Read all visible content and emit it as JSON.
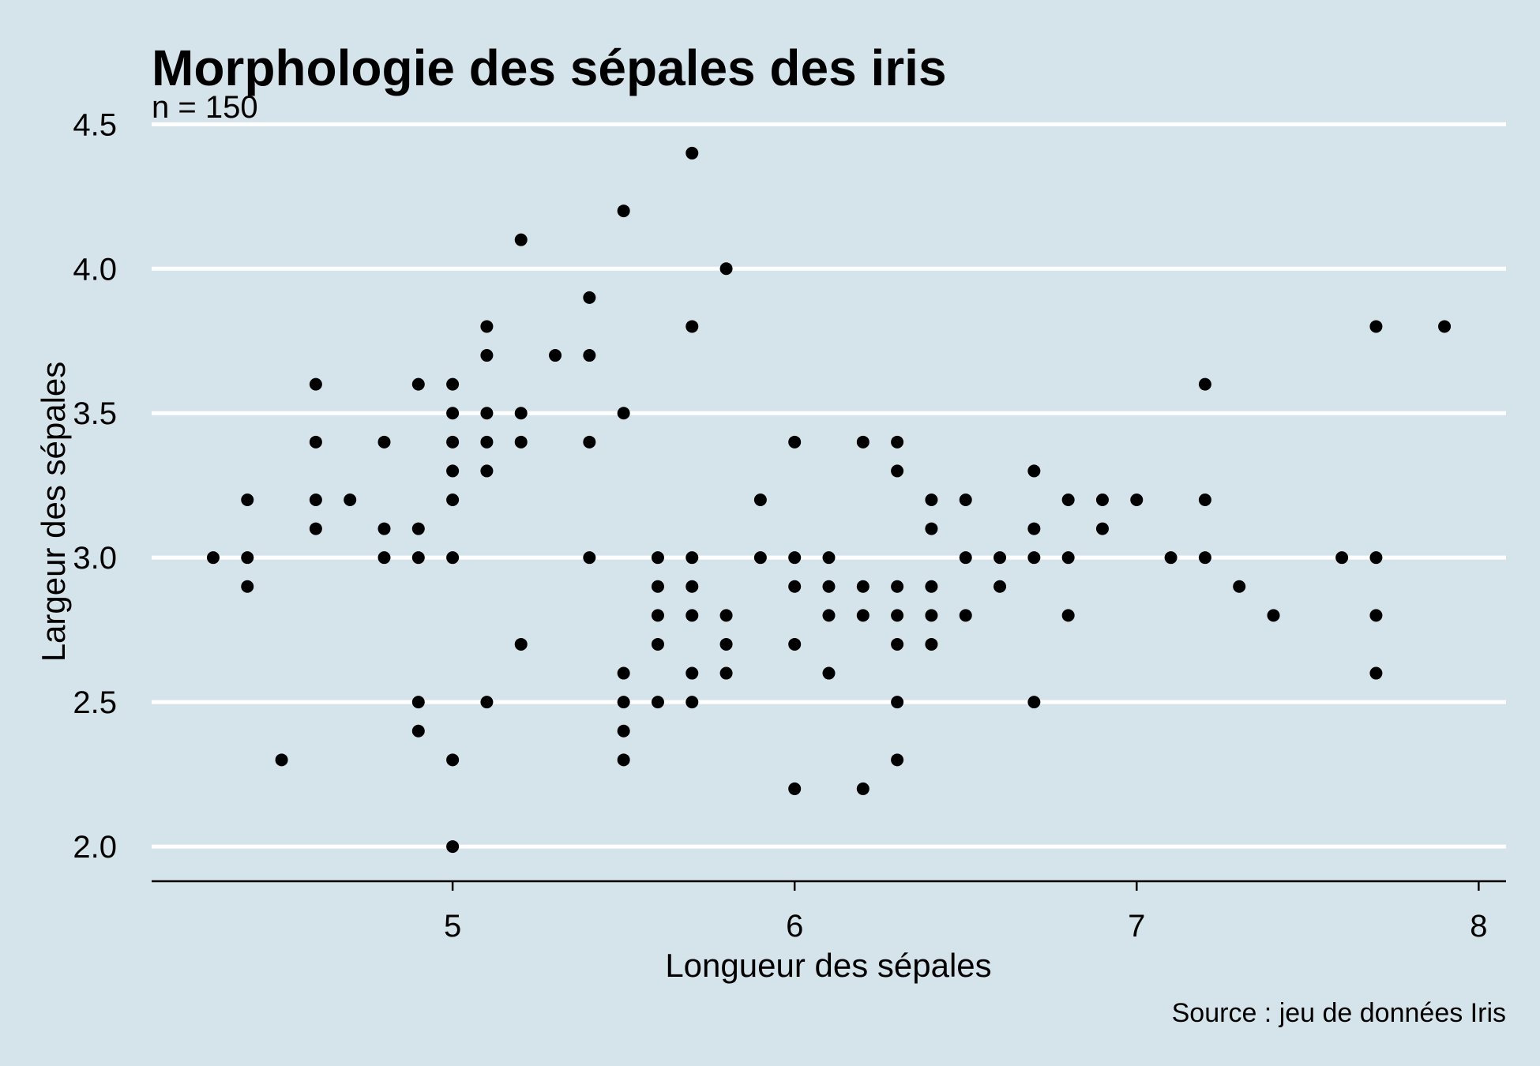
{
  "chart_data": {
    "type": "scatter",
    "title": "Morphologie des sépales des iris",
    "subtitle": "n = 150",
    "xlabel": "Longueur des sépales",
    "ylabel": "Largeur des sépales",
    "caption": "Source : jeu de données Iris",
    "xlim": [
      4.12,
      8.08
    ],
    "ylim": [
      1.88,
      4.52
    ],
    "x_ticks": [
      5,
      6,
      7,
      8
    ],
    "x_tick_labels": [
      "5",
      "6",
      "7",
      "8"
    ],
    "y_ticks": [
      2.0,
      2.5,
      3.0,
      3.5,
      4.0,
      4.5
    ],
    "y_tick_labels": [
      "2.0",
      "2.5",
      "3.0",
      "3.5",
      "4.0",
      "4.5"
    ],
    "grid": "horizontal major gridlines (white)",
    "legend": "none",
    "point_color": "#000000",
    "background_color": "#d5e4eb",
    "grid_color": "#ffffff",
    "points": [
      [
        4.3,
        3.0
      ],
      [
        4.4,
        3.2
      ],
      [
        4.4,
        3.0
      ],
      [
        4.4,
        2.9
      ],
      [
        4.5,
        2.3
      ],
      [
        4.6,
        3.6
      ],
      [
        4.6,
        3.4
      ],
      [
        4.6,
        3.2
      ],
      [
        4.6,
        3.1
      ],
      [
        4.7,
        3.2
      ],
      [
        4.8,
        3.4
      ],
      [
        4.8,
        3.1
      ],
      [
        4.8,
        3.0
      ],
      [
        4.9,
        3.6
      ],
      [
        4.9,
        3.1
      ],
      [
        4.9,
        3.0
      ],
      [
        4.9,
        2.5
      ],
      [
        4.9,
        2.4
      ],
      [
        5.0,
        3.6
      ],
      [
        5.0,
        3.5
      ],
      [
        5.0,
        3.4
      ],
      [
        5.0,
        3.3
      ],
      [
        5.0,
        3.2
      ],
      [
        5.0,
        3.0
      ],
      [
        5.0,
        2.3
      ],
      [
        5.0,
        2.0
      ],
      [
        5.1,
        3.8
      ],
      [
        5.1,
        3.7
      ],
      [
        5.1,
        3.5
      ],
      [
        5.1,
        3.4
      ],
      [
        5.1,
        3.3
      ],
      [
        5.1,
        2.5
      ],
      [
        5.2,
        4.1
      ],
      [
        5.2,
        3.5
      ],
      [
        5.2,
        3.4
      ],
      [
        5.2,
        2.7
      ],
      [
        5.3,
        3.7
      ],
      [
        5.4,
        3.9
      ],
      [
        5.4,
        3.7
      ],
      [
        5.4,
        3.4
      ],
      [
        5.4,
        3.0
      ],
      [
        5.5,
        4.2
      ],
      [
        5.5,
        3.5
      ],
      [
        5.5,
        2.6
      ],
      [
        5.5,
        2.5
      ],
      [
        5.5,
        2.4
      ],
      [
        5.5,
        2.3
      ],
      [
        5.6,
        3.0
      ],
      [
        5.6,
        2.9
      ],
      [
        5.6,
        2.8
      ],
      [
        5.6,
        2.7
      ],
      [
        5.6,
        2.5
      ],
      [
        5.7,
        4.4
      ],
      [
        5.7,
        3.8
      ],
      [
        5.7,
        3.0
      ],
      [
        5.7,
        2.9
      ],
      [
        5.7,
        2.8
      ],
      [
        5.7,
        2.6
      ],
      [
        5.7,
        2.5
      ],
      [
        5.8,
        4.0
      ],
      [
        5.8,
        2.8
      ],
      [
        5.8,
        2.7
      ],
      [
        5.8,
        2.6
      ],
      [
        5.9,
        3.2
      ],
      [
        5.9,
        3.0
      ],
      [
        6.0,
        3.4
      ],
      [
        6.0,
        3.0
      ],
      [
        6.0,
        2.9
      ],
      [
        6.0,
        2.7
      ],
      [
        6.0,
        2.2
      ],
      [
        6.1,
        3.0
      ],
      [
        6.1,
        2.9
      ],
      [
        6.1,
        2.8
      ],
      [
        6.1,
        2.6
      ],
      [
        6.2,
        3.4
      ],
      [
        6.2,
        2.9
      ],
      [
        6.2,
        2.8
      ],
      [
        6.2,
        2.2
      ],
      [
        6.3,
        3.4
      ],
      [
        6.3,
        3.3
      ],
      [
        6.3,
        2.9
      ],
      [
        6.3,
        2.8
      ],
      [
        6.3,
        2.7
      ],
      [
        6.3,
        2.5
      ],
      [
        6.3,
        2.3
      ],
      [
        6.4,
        3.2
      ],
      [
        6.4,
        3.1
      ],
      [
        6.4,
        2.9
      ],
      [
        6.4,
        2.8
      ],
      [
        6.4,
        2.7
      ],
      [
        6.5,
        3.2
      ],
      [
        6.5,
        3.0
      ],
      [
        6.5,
        2.8
      ],
      [
        6.6,
        3.0
      ],
      [
        6.6,
        2.9
      ],
      [
        6.7,
        3.3
      ],
      [
        6.7,
        3.1
      ],
      [
        6.7,
        3.0
      ],
      [
        6.7,
        2.5
      ],
      [
        6.8,
        3.2
      ],
      [
        6.8,
        3.0
      ],
      [
        6.8,
        2.8
      ],
      [
        6.9,
        3.2
      ],
      [
        6.9,
        3.1
      ],
      [
        7.0,
        3.2
      ],
      [
        7.1,
        3.0
      ],
      [
        7.2,
        3.6
      ],
      [
        7.2,
        3.2
      ],
      [
        7.2,
        3.0
      ],
      [
        7.3,
        2.9
      ],
      [
        7.4,
        2.8
      ],
      [
        7.6,
        3.0
      ],
      [
        7.7,
        3.8
      ],
      [
        7.7,
        3.0
      ],
      [
        7.7,
        2.8
      ],
      [
        7.7,
        2.6
      ],
      [
        7.9,
        3.8
      ]
    ]
  }
}
